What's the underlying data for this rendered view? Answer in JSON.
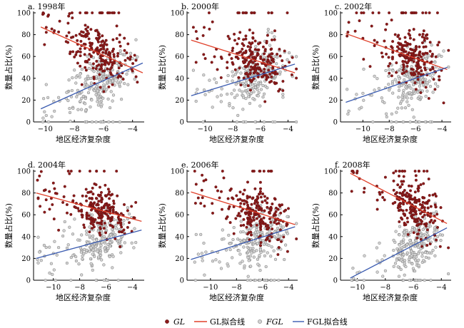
{
  "legend": {
    "gl_label": "GL",
    "gl_fit_label": "GL拟合线",
    "fgl_label": "FGL",
    "fgl_fit_label": "FGL拟合线"
  },
  "colors": {
    "gl_point": "#8b1a1a",
    "gl_point_stroke": "#5a0f0f",
    "gl_fit": "#e0402a",
    "fgl_point": "#d4d4d4",
    "fgl_point_stroke": "#7a7a7a",
    "fgl_fit": "#3a5bb0",
    "axis": "#000000"
  },
  "chart_data": [
    {
      "type": "scatter",
      "title": "a. 1998年",
      "xlabel": "地区经济复杂度",
      "ylabel": "数量占比(%)",
      "xlim": [
        -10.8,
        -3.2
      ],
      "ylim": [
        0,
        100
      ],
      "xticks": [
        -10,
        -8,
        -6,
        -4
      ],
      "yticks": [
        0,
        20,
        40,
        60,
        80,
        100
      ],
      "gl_fit": {
        "x": [
          -10.3,
          -3.3
        ],
        "y": [
          87,
          45
        ]
      },
      "fgl_fit": {
        "x": [
          -10.3,
          -3.3
        ],
        "y": [
          12,
          54
        ]
      },
      "gl_cloud": {
        "x_mean": -6.3,
        "x_sd": 1.0,
        "y_mean": 65,
        "y_sd": 12,
        "n": 180,
        "x_min": -10.5,
        "x_max": -3.4
      }
    },
    {
      "type": "scatter",
      "title": "b. 2000年",
      "xlabel": "地区经济复杂度",
      "ylabel": "数量占比(%)",
      "xlim": [
        -11.3,
        -3.3
      ],
      "ylim": [
        0,
        100
      ],
      "xticks": [
        -10,
        -8,
        -6,
        -4
      ],
      "yticks": [
        0,
        20,
        40,
        60,
        80,
        100
      ],
      "gl_fit": {
        "x": [
          -11.0,
          -3.5
        ],
        "y": [
          75,
          45
        ]
      },
      "fgl_fit": {
        "x": [
          -11.0,
          -3.5
        ],
        "y": [
          24,
          53
        ]
      }
    },
    {
      "type": "scatter",
      "title": "c. 2002年",
      "xlabel": "地区经济复杂度",
      "ylabel": "数量占比(%)",
      "xlim": [
        -11.7,
        -3.3
      ],
      "ylim": [
        0,
        100
      ],
      "xticks": [
        -10,
        -8,
        -6,
        -4
      ],
      "yticks": [
        0,
        20,
        40,
        60,
        80,
        100
      ],
      "gl_fit": {
        "x": [
          -11.3,
          -3.6
        ],
        "y": [
          81,
          48
        ]
      },
      "fgl_fit": {
        "x": [
          -11.3,
          -3.6
        ],
        "y": [
          18,
          50
        ]
      }
    },
    {
      "type": "scatter",
      "title": "d. 2004年",
      "xlabel": "地区经济复杂度",
      "ylabel": "数量占比(%)",
      "xlim": [
        -11.5,
        -3.1
      ],
      "ylim": [
        0,
        100
      ],
      "xticks": [
        -10,
        -8,
        -6,
        -4
      ],
      "yticks": [
        0,
        20,
        40,
        60,
        80,
        100
      ],
      "gl_fit": {
        "x": [
          -11.3,
          -3.3
        ],
        "y": [
          80,
          54
        ]
      },
      "fgl_fit": {
        "x": [
          -11.3,
          -3.3
        ],
        "y": [
          20,
          46
        ]
      }
    },
    {
      "type": "scatter",
      "title": "e. 2006年",
      "xlabel": "地区经济复杂度",
      "ylabel": "数量占比(%)",
      "xlim": [
        -11.8,
        -3.3
      ],
      "ylim": [
        0,
        100
      ],
      "xticks": [
        -10,
        -8,
        -6,
        -4
      ],
      "yticks": [
        0,
        20,
        40,
        60,
        80,
        100
      ],
      "gl_fit": {
        "x": [
          -11.5,
          -3.5
        ],
        "y": [
          81,
          51
        ]
      },
      "fgl_fit": {
        "x": [
          -11.5,
          -3.5
        ],
        "y": [
          19,
          49
        ]
      }
    },
    {
      "type": "scatter",
      "title": "f. 2008年",
      "xlabel": "地区经济复杂度",
      "ylabel": "数量占比(%)",
      "xlim": [
        -11.2,
        -3.3
      ],
      "ylim": [
        0,
        100
      ],
      "xticks": [
        -10,
        -8,
        -6,
        -4
      ],
      "yticks": [
        0,
        20,
        40,
        60,
        80,
        100
      ],
      "gl_fit": {
        "x": [
          -10.5,
          -3.6
        ],
        "y": [
          98,
          52
        ]
      },
      "fgl_fit": {
        "x": [
          -10.5,
          -3.6
        ],
        "y": [
          2,
          48
        ]
      }
    }
  ]
}
